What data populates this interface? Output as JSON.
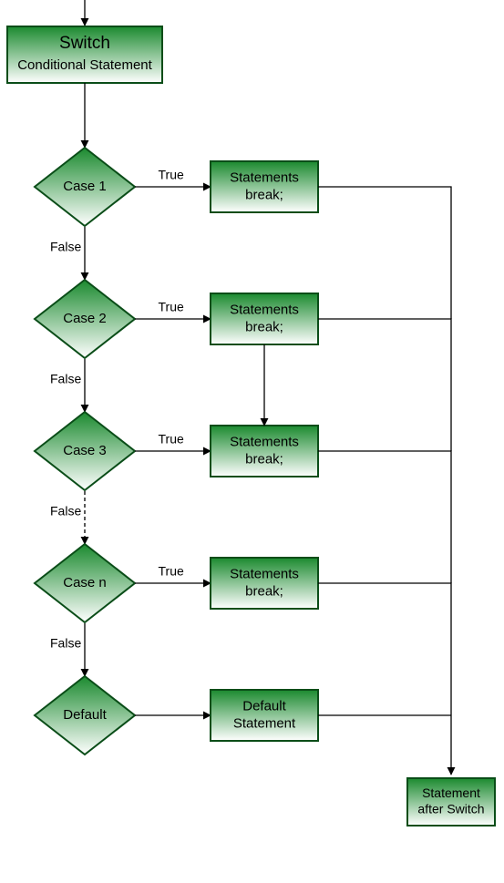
{
  "type": "flowchart",
  "colors": {
    "fill_dark": "#1b8a2f",
    "fill_light": "#ffffff",
    "stroke": "#0a4d18",
    "text": "#000000",
    "edge": "#000000"
  },
  "stroke_width": 2,
  "fontsize_title": 19,
  "fontsize_sub": 15,
  "fontsize_case": 15,
  "fontsize_label": 14,
  "fontsize_box": 15,
  "fontsize_end": 14,
  "switch_box": {
    "title": "Switch",
    "subtitle": "Conditional Statement"
  },
  "cases": [
    {
      "label": "Case 1",
      "true": "True",
      "false": "False",
      "box": [
        "Statements",
        "break;"
      ]
    },
    {
      "label": "Case 2",
      "true": "True",
      "false": "False",
      "box": [
        "Statements",
        "break;"
      ]
    },
    {
      "label": "Case 3",
      "true": "True",
      "false": "False",
      "box": [
        "Statements",
        "break;"
      ]
    },
    {
      "label": "Case n",
      "true": "True",
      "false": "False",
      "box": [
        "Statements",
        "break;"
      ]
    }
  ],
  "default": {
    "label": "Default",
    "box": [
      "Default",
      "Statement"
    ]
  },
  "end_box": {
    "lines": [
      "Statement",
      "after Switch"
    ]
  },
  "dashed_between": [
    2,
    3
  ]
}
